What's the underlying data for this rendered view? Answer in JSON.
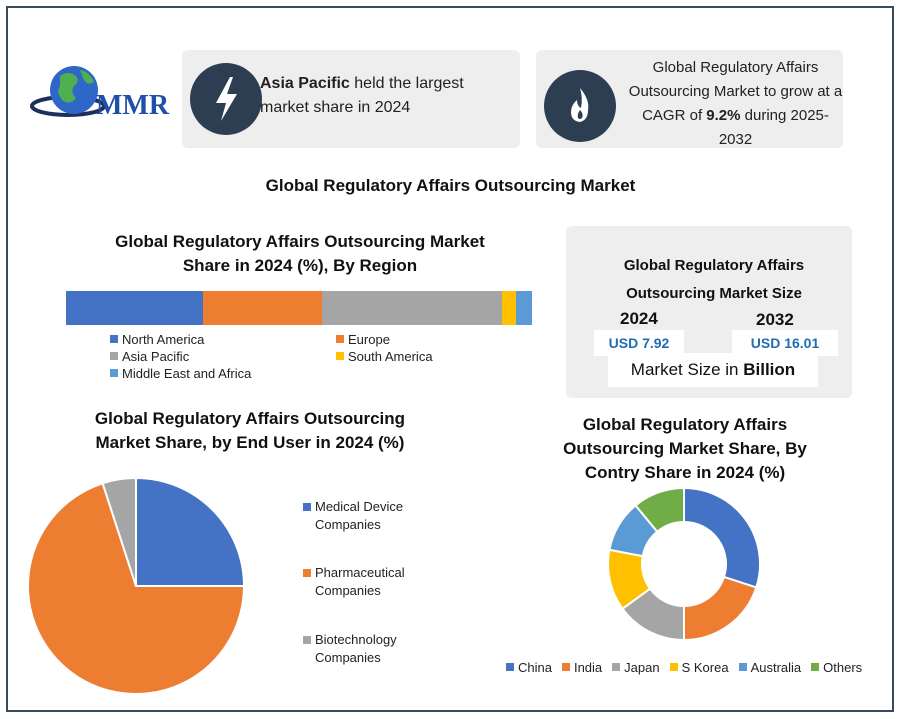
{
  "logo": {
    "text": "MMR"
  },
  "card1": {
    "bold": "Asia Pacific",
    "text": " held the largest market share in 2024",
    "icon": "lightning-icon"
  },
  "card2": {
    "text_before": "Global Regulatory Affairs Outsourcing Market to grow at a CAGR of ",
    "bold": "9.2%",
    "text_after": " during 2025-2032",
    "icon": "fire-icon"
  },
  "main_title": "Global Regulatory Affairs Outsourcing Market",
  "market_size": {
    "title_line1": "Global Regulatory Affairs",
    "title_line2": "Outsourcing Market Size",
    "year1": "2024",
    "value1": "USD 7.92",
    "year2": "2032",
    "value2": "USD 16.01",
    "foot_prefix": "Market Size in ",
    "foot_bold": "Billion"
  },
  "colors": {
    "blue": "#4472c4",
    "orange": "#ed7d31",
    "gray": "#a5a5a5",
    "yellow": "#ffc000",
    "lightblue": "#5b9bd5",
    "green": "#70ad47",
    "dark": "#2d3e52"
  },
  "chart_data": [
    {
      "type": "bar",
      "stacked": true,
      "orientation": "horizontal",
      "title": "Global  Regulatory Affairs Outsourcing Market Share in 2024 (%), By Region",
      "series": [
        {
          "name": "North America",
          "value": 29.5,
          "color": "#4472c4"
        },
        {
          "name": "Europe",
          "value": 25.5,
          "color": "#ed7d31"
        },
        {
          "name": "Asia Pacific",
          "value": 38.5,
          "color": "#a5a5a5"
        },
        {
          "name": "South America",
          "value": 3.0,
          "color": "#ffc000"
        },
        {
          "name": "Middle East and Africa",
          "value": 3.5,
          "color": "#5b9bd5"
        }
      ],
      "legend": "bottom"
    },
    {
      "type": "pie",
      "title": "Global Regulatory Affairs Outsourcing Market Share, by End User in 2024 (%)",
      "slices": [
        {
          "name": "Medical Device Companies",
          "value": 25,
          "color": "#4472c4"
        },
        {
          "name": "Pharmaceutical Companies",
          "value": 70,
          "color": "#ed7d31"
        },
        {
          "name": "Biotechnology Companies",
          "value": 5,
          "color": "#a5a5a5"
        }
      ],
      "legend": "right"
    },
    {
      "type": "pie",
      "donut": true,
      "title": "Global Regulatory Affairs Outsourcing Market Share, By Contry Share in 2024 (%)",
      "slices": [
        {
          "name": "China",
          "value": 30,
          "color": "#4472c4"
        },
        {
          "name": "India",
          "value": 20,
          "color": "#ed7d31"
        },
        {
          "name": "Japan",
          "value": 15,
          "color": "#a5a5a5"
        },
        {
          "name": "S Korea",
          "value": 13,
          "color": "#ffc000"
        },
        {
          "name": "Australia",
          "value": 11,
          "color": "#5b9bd5"
        },
        {
          "name": "Others",
          "value": 11,
          "color": "#70ad47"
        }
      ],
      "legend": "bottom"
    }
  ]
}
